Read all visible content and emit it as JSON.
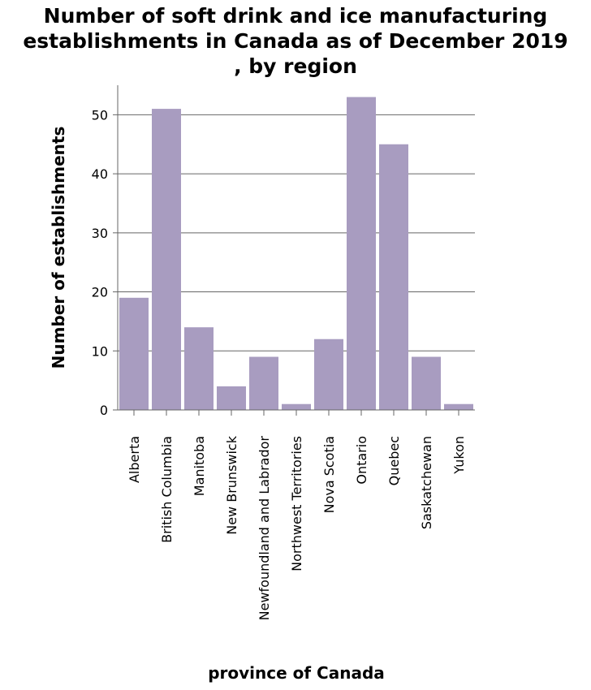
{
  "chart_data": {
    "type": "bar",
    "title": "Number of soft drink and ice manufacturing\nestablishments in Canada as of December 2019\n, by region",
    "xlabel": "province of Canada",
    "ylabel": "Number of establishments",
    "categories": [
      "Alberta",
      "British Columbia",
      "Manitoba",
      "New Brunswick",
      "Newfoundland and Labrador",
      "Northwest Territories",
      "Nova Scotia",
      "Ontario",
      "Quebec",
      "Saskatchewan",
      "Yukon"
    ],
    "values": [
      19,
      51,
      14,
      4,
      9,
      1,
      12,
      53,
      45,
      9,
      1
    ],
    "ylim": [
      0,
      55
    ],
    "yticks": [
      0,
      10,
      20,
      30,
      40,
      50
    ],
    "grid": "horizontal",
    "bar_color": "#a89cc0"
  }
}
